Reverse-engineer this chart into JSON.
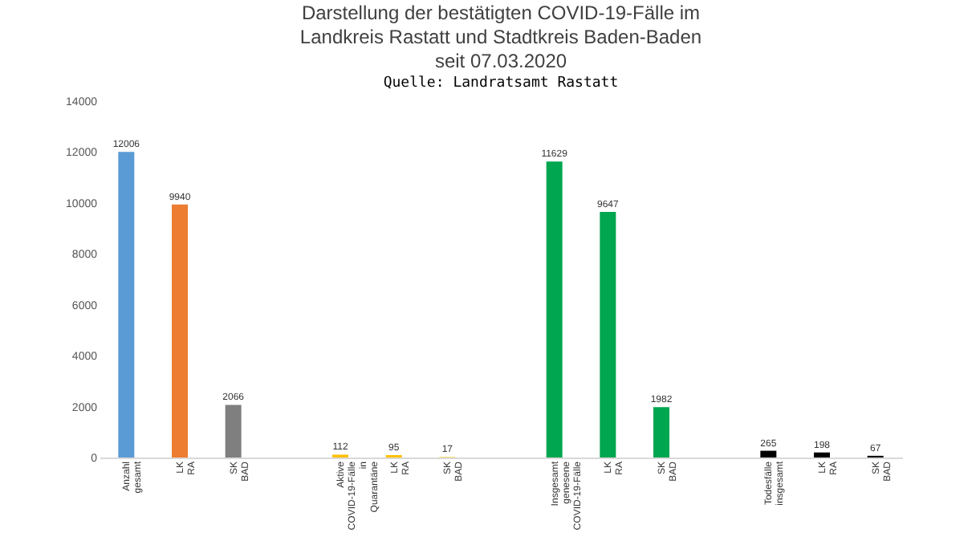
{
  "chart_data": {
    "type": "bar",
    "title": "Darstellung der bestätigten COVID-19-Fälle im\nLandkreis Rastatt und Stadtkreis Baden-Baden\nseit 07.03.2020",
    "annotations": [
      "Quelle: Landratsamt Rastatt"
    ],
    "categories": [
      "Anzahl gesamt",
      "LK RA",
      "SK BAD",
      null,
      "Aktive COVID-19-Fälle in Quarantäne",
      "LK RA",
      "SK BAD",
      null,
      "Insgesamt genesene COVID-19-Fälle",
      "LK RA",
      "SK BAD",
      null,
      "Todesfälle insgesamt",
      "LK RA",
      "SK BAD"
    ],
    "values": [
      12006,
      9940,
      2066,
      null,
      112,
      95,
      17,
      null,
      11629,
      9647,
      1982,
      null,
      265,
      198,
      67
    ],
    "colors": [
      "#5b9bd5",
      "#ed7d31",
      "#7f7f7f",
      null,
      "#ffc000",
      "#ffc000",
      "#ffc000",
      null,
      "#00a650",
      "#00a650",
      "#00a650",
      null,
      "#000000",
      "#000000",
      "#000000"
    ],
    "ylim": [
      0,
      14000
    ],
    "yticks": [
      0,
      2000,
      4000,
      6000,
      8000,
      10000,
      12000,
      14000
    ],
    "data_labels": true
  }
}
